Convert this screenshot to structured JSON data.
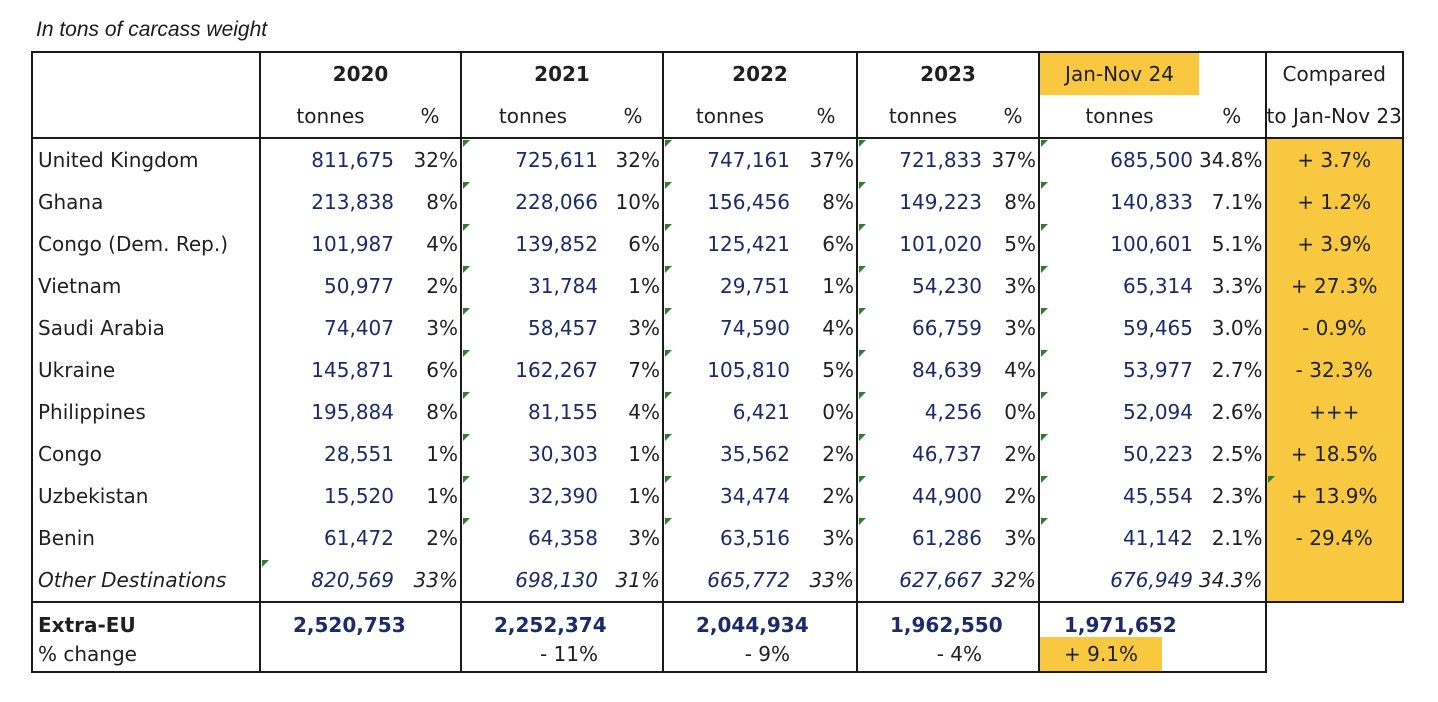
{
  "caption": "In tons of carcass weight",
  "headers": {
    "years": [
      "2020",
      "2021",
      "2022",
      "2023",
      "Jan-Nov 24"
    ],
    "tonnes": "tonnes",
    "pct": "%",
    "compared_line1": "Compared",
    "compared_line2": "to Jan-Nov 23"
  },
  "colors": {
    "highlight": "#f7c840",
    "number_text": "#1b2a6b",
    "cell_marker": "#2e7d32"
  },
  "rows": [
    {
      "country": "United Kingdom",
      "v2020": "811,675",
      "p2020": "32%",
      "v2021": "725,611",
      "p2021": "32%",
      "v2022": "747,161",
      "p2022": "37%",
      "v2023": "721,833",
      "p2023": "37%",
      "v2024": "685,500",
      "p2024": "34.8%",
      "cmp": "+ 3.7%"
    },
    {
      "country": "Ghana",
      "v2020": "213,838",
      "p2020": "8%",
      "v2021": "228,066",
      "p2021": "10%",
      "v2022": "156,456",
      "p2022": "8%",
      "v2023": "149,223",
      "p2023": "8%",
      "v2024": "140,833",
      "p2024": "7.1%",
      "cmp": "+ 1.2%"
    },
    {
      "country": "Congo (Dem. Rep.)",
      "v2020": "101,987",
      "p2020": "4%",
      "v2021": "139,852",
      "p2021": "6%",
      "v2022": "125,421",
      "p2022": "6%",
      "v2023": "101,020",
      "p2023": "5%",
      "v2024": "100,601",
      "p2024": "5.1%",
      "cmp": "+ 3.9%"
    },
    {
      "country": "Vietnam",
      "v2020": "50,977",
      "p2020": "2%",
      "v2021": "31,784",
      "p2021": "1%",
      "v2022": "29,751",
      "p2022": "1%",
      "v2023": "54,230",
      "p2023": "3%",
      "v2024": "65,314",
      "p2024": "3.3%",
      "cmp": "+ 27.3%"
    },
    {
      "country": "Saudi Arabia",
      "v2020": "74,407",
      "p2020": "3%",
      "v2021": "58,457",
      "p2021": "3%",
      "v2022": "74,590",
      "p2022": "4%",
      "v2023": "66,759",
      "p2023": "3%",
      "v2024": "59,465",
      "p2024": "3.0%",
      "cmp": "- 0.9%"
    },
    {
      "country": "Ukraine",
      "v2020": "145,871",
      "p2020": "6%",
      "v2021": "162,267",
      "p2021": "7%",
      "v2022": "105,810",
      "p2022": "5%",
      "v2023": "84,639",
      "p2023": "4%",
      "v2024": "53,977",
      "p2024": "2.7%",
      "cmp": "- 32.3%"
    },
    {
      "country": "Philippines",
      "v2020": "195,884",
      "p2020": "8%",
      "v2021": "81,155",
      "p2021": "4%",
      "v2022": "6,421",
      "p2022": "0%",
      "v2023": "4,256",
      "p2023": "0%",
      "v2024": "52,094",
      "p2024": "2.6%",
      "cmp": "+++"
    },
    {
      "country": "Congo",
      "v2020": "28,551",
      "p2020": "1%",
      "v2021": "30,303",
      "p2021": "1%",
      "v2022": "35,562",
      "p2022": "2%",
      "v2023": "46,737",
      "p2023": "2%",
      "v2024": "50,223",
      "p2024": "2.5%",
      "cmp": "+ 18.5%"
    },
    {
      "country": "Uzbekistan",
      "v2020": "15,520",
      "p2020": "1%",
      "v2021": "32,390",
      "p2021": "1%",
      "v2022": "34,474",
      "p2022": "2%",
      "v2023": "44,900",
      "p2023": "2%",
      "v2024": "45,554",
      "p2024": "2.3%",
      "cmp": "+ 13.9%"
    },
    {
      "country": "Benin",
      "v2020": "61,472",
      "p2020": "2%",
      "v2021": "64,358",
      "p2021": "3%",
      "v2022": "63,516",
      "p2022": "3%",
      "v2023": "61,286",
      "p2023": "3%",
      "v2024": "41,142",
      "p2024": "2.1%",
      "cmp": "- 29.4%"
    }
  ],
  "other": {
    "country": "Other Destinations",
    "v2020": "820,569",
    "p2020": "33%",
    "v2021": "698,130",
    "p2021": "31%",
    "v2022": "665,772",
    "p2022": "33%",
    "v2023": "627,667",
    "p2023": "32%",
    "v2024": "676,949",
    "p2024": "34.3%"
  },
  "total": {
    "label": "Extra-EU",
    "v2020": "2,520,753",
    "v2021": "2,252,374",
    "v2022": "2,044,934",
    "v2023": "1,962,550",
    "v2024": "1,971,652",
    "change_label": "% change",
    "c2021": "- 11%",
    "c2022": "- 9%",
    "c2023": "- 4%",
    "c2024": "+ 9.1%"
  }
}
